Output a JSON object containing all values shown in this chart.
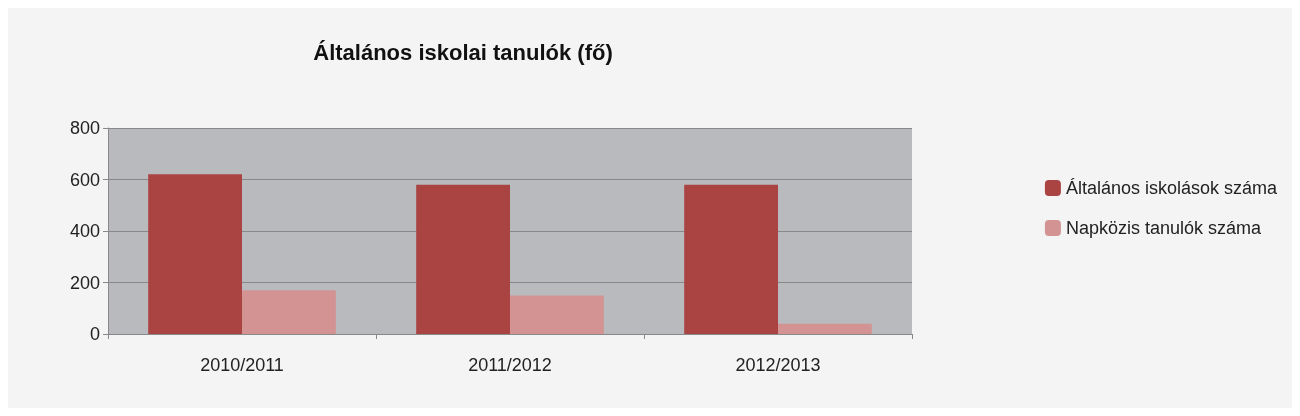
{
  "chart_data": {
    "type": "bar",
    "title": "Általános iskolai tanulók (fő)",
    "categories": [
      "2010/2011",
      "2011/2012",
      "2012/2013"
    ],
    "series": [
      {
        "name": "Általános iskolások száma",
        "color": "#a94442",
        "values": [
          620,
          580,
          580
        ]
      },
      {
        "name": "Napközis tanulók száma",
        "color": "#d39393",
        "values": [
          170,
          150,
          40
        ]
      }
    ],
    "ylim": [
      0,
      800
    ],
    "yticks": [
      0,
      200,
      400,
      600,
      800
    ],
    "grid": "y",
    "legend": "right"
  }
}
